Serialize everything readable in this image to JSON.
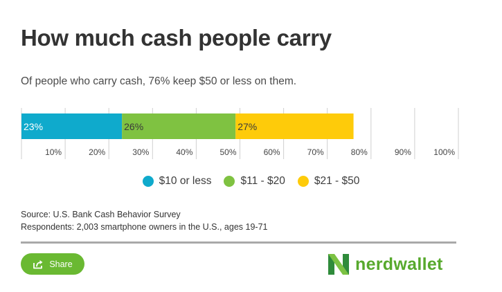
{
  "header": {
    "title": "How much cash people carry",
    "subtitle": "Of people who carry cash, 76% keep $50 or less on them."
  },
  "chart_data": {
    "type": "bar",
    "orientation": "horizontal",
    "stacked": true,
    "title": "",
    "xlabel": "",
    "ylabel": "",
    "xlim": [
      0,
      100
    ],
    "x_ticks": [
      {
        "value": 10,
        "label": "10%"
      },
      {
        "value": 20,
        "label": "20%"
      },
      {
        "value": 30,
        "label": "30%"
      },
      {
        "value": 40,
        "label": "40%"
      },
      {
        "value": 50,
        "label": "50%"
      },
      {
        "value": 60,
        "label": "60%"
      },
      {
        "value": 70,
        "label": "70%"
      },
      {
        "value": 80,
        "label": "80%"
      },
      {
        "value": 90,
        "label": "90%"
      },
      {
        "value": 100,
        "label": "100%"
      }
    ],
    "grid": true,
    "legend_position": "bottom",
    "series": [
      {
        "name": "$10 or less",
        "value": 23,
        "label": "23%",
        "color": "#0faacc"
      },
      {
        "name": "$11 - $20",
        "value": 26,
        "label": "26%",
        "color": "#7fc241"
      },
      {
        "name": "$21 - $50",
        "value": 27,
        "label": "27%",
        "color": "#fecb0a"
      }
    ]
  },
  "notes": {
    "source": "Source: U.S. Bank Cash Behavior Survey",
    "respondents": "Respondents: 2,003 smartphone owners in the U.S., ages 19-71"
  },
  "footer": {
    "share_label": "Share",
    "logo_text": "nerdwallet",
    "icons": {
      "share": "share-icon",
      "logo": "nerdwallet-logo-icon"
    }
  },
  "colors": {
    "accent": "#6ab932",
    "logo_green": "#57a92d",
    "gridline": "#cfcfcf",
    "rule": "#a9a9a9"
  }
}
